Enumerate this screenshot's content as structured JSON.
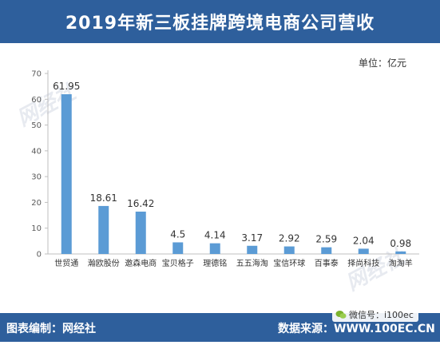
{
  "header": {
    "title": "2019年新三板挂牌跨境电商公司营收"
  },
  "unit_label": "单位：亿元",
  "footer": {
    "left": "图表编制：网经社",
    "right": "数据来源：WWW.100EC.CN",
    "wechat": "微信号：i100ec"
  },
  "watermark": {
    "text": "网经社"
  },
  "colors": {
    "header_bg": "#2e5f9c",
    "bar": "#5b9bd5"
  },
  "chart_data": {
    "type": "bar",
    "title": "2019年新三板挂牌跨境电商公司营收",
    "categories": [
      "世贸通",
      "瀚欧股份",
      "邀森电商",
      "宝贝格子",
      "理德铭",
      "五五海淘",
      "宝信环球",
      "百事泰",
      "择尚科技",
      "淘淘羊"
    ],
    "values": [
      61.95,
      18.61,
      16.42,
      4.5,
      4.14,
      3.17,
      2.92,
      2.59,
      2.04,
      0.98
    ],
    "value_labels": [
      "61.95",
      "18.61",
      "16.42",
      "4.5",
      "4.14",
      "3.17",
      "2.92",
      "2.59",
      "2.04",
      "0.98"
    ],
    "ylim": [
      0,
      70
    ],
    "yticks": [
      0,
      10,
      20,
      30,
      40,
      50,
      60,
      70
    ],
    "ylabel": "单位：亿元",
    "xlabel": "",
    "grid": false
  }
}
